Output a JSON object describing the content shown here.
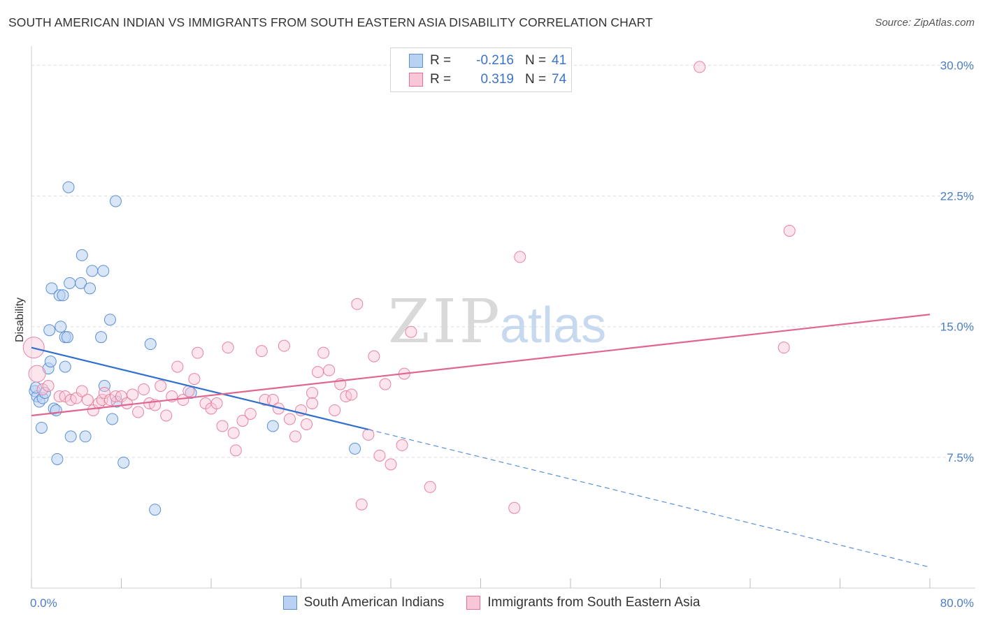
{
  "title": "SOUTH AMERICAN INDIAN VS IMMIGRANTS FROM SOUTH EASTERN ASIA DISABILITY CORRELATION CHART",
  "source": "Source: ZipAtlas.com",
  "watermark": {
    "zip": "ZIP",
    "atlas": "atlas"
  },
  "legend": {
    "rows": [
      {
        "r_label": "R =",
        "r_value": "-0.216",
        "n_label": "N =",
        "n_value": "41"
      },
      {
        "r_label": "R =",
        "r_value": "0.319",
        "n_label": "N =",
        "n_value": "74"
      }
    ]
  },
  "bottom_legend": {
    "series1": "South American Indians",
    "series2": "Immigrants from South Eastern Asia"
  },
  "colors": {
    "blue": "#5b8fd6",
    "blue_fill": "#b9d2f3",
    "pink": "#e86f9a",
    "pink_fill": "#f8c6d6",
    "axis_text": "#4a7ec4"
  },
  "chart_data": {
    "type": "scatter",
    "title": "SOUTH AMERICAN INDIAN VS IMMIGRANTS FROM SOUTH EASTERN ASIA DISABILITY CORRELATION CHART",
    "xlabel": "",
    "ylabel": "Disability",
    "xlim": [
      0,
      80
    ],
    "ylim": [
      0,
      31.5
    ],
    "x_tick_labels": [
      "0.0%",
      "80.0%"
    ],
    "y_ticks": [
      7.5,
      15.0,
      22.5,
      30.0
    ],
    "y_tick_labels": [
      "7.5%",
      "15.0%",
      "22.5%",
      "30.0%"
    ],
    "series": [
      {
        "name": "South American Indians",
        "color": "#5b8fd6",
        "trend": {
          "x0": 0,
          "y0": 13.8,
          "x1": 30,
          "y1": 9.1,
          "dash_to_x": 80,
          "dash_to_y": 1.2
        },
        "points": [
          [
            0.3,
            11.3
          ],
          [
            0.5,
            11.0
          ],
          [
            0.7,
            10.7
          ],
          [
            1.0,
            10.9
          ],
          [
            1.2,
            11.2
          ],
          [
            0.9,
            9.2
          ],
          [
            1.5,
            12.6
          ],
          [
            1.6,
            14.8
          ],
          [
            1.7,
            13.0
          ],
          [
            1.8,
            17.2
          ],
          [
            2.0,
            10.3
          ],
          [
            2.2,
            10.2
          ],
          [
            2.3,
            7.4
          ],
          [
            2.5,
            16.8
          ],
          [
            2.6,
            15.0
          ],
          [
            2.8,
            16.8
          ],
          [
            3.0,
            14.4
          ],
          [
            3.0,
            12.7
          ],
          [
            3.2,
            14.4
          ],
          [
            3.3,
            23.0
          ],
          [
            3.4,
            17.5
          ],
          [
            3.5,
            8.7
          ],
          [
            4.4,
            17.5
          ],
          [
            4.5,
            19.1
          ],
          [
            4.8,
            8.7
          ],
          [
            5.2,
            17.2
          ],
          [
            5.4,
            18.2
          ],
          [
            6.2,
            14.4
          ],
          [
            6.4,
            18.2
          ],
          [
            6.5,
            11.6
          ],
          [
            7.0,
            15.4
          ],
          [
            7.2,
            9.7
          ],
          [
            7.5,
            22.2
          ],
          [
            7.6,
            10.7
          ],
          [
            8.2,
            7.2
          ],
          [
            10.6,
            14.0
          ],
          [
            11.0,
            4.5
          ],
          [
            14.2,
            11.2
          ],
          [
            21.5,
            9.3
          ],
          [
            28.8,
            8.0
          ],
          [
            0.4,
            11.5
          ]
        ]
      },
      {
        "name": "Immigrants from South Eastern Asia",
        "color": "#e86f9a",
        "trend": {
          "x0": 0,
          "y0": 9.9,
          "x1": 80,
          "y1": 15.7
        },
        "points": [
          [
            0.2,
            13.8
          ],
          [
            0.5,
            12.3
          ],
          [
            1.0,
            11.4
          ],
          [
            1.5,
            11.6
          ],
          [
            2.5,
            11.0
          ],
          [
            3.0,
            11.0
          ],
          [
            3.5,
            10.8
          ],
          [
            4.0,
            10.9
          ],
          [
            4.5,
            11.3
          ],
          [
            5.0,
            10.8
          ],
          [
            5.5,
            10.2
          ],
          [
            6.0,
            10.6
          ],
          [
            6.3,
            10.8
          ],
          [
            6.5,
            11.2
          ],
          [
            7.0,
            10.8
          ],
          [
            7.5,
            11.0
          ],
          [
            8.0,
            11.0
          ],
          [
            8.5,
            10.6
          ],
          [
            9.0,
            11.1
          ],
          [
            9.5,
            10.1
          ],
          [
            10.0,
            11.4
          ],
          [
            10.5,
            10.6
          ],
          [
            11.0,
            10.5
          ],
          [
            11.5,
            11.6
          ],
          [
            12.0,
            9.9
          ],
          [
            12.5,
            11.0
          ],
          [
            13.0,
            12.7
          ],
          [
            13.5,
            10.8
          ],
          [
            14.0,
            11.3
          ],
          [
            14.5,
            12.0
          ],
          [
            14.8,
            13.5
          ],
          [
            15.5,
            10.6
          ],
          [
            16.0,
            10.3
          ],
          [
            16.5,
            10.6
          ],
          [
            17.0,
            9.3
          ],
          [
            17.5,
            13.8
          ],
          [
            18.0,
            8.9
          ],
          [
            18.2,
            7.9
          ],
          [
            18.8,
            9.6
          ],
          [
            19.5,
            10.0
          ],
          [
            20.5,
            13.6
          ],
          [
            20.8,
            10.8
          ],
          [
            21.5,
            10.8
          ],
          [
            22.0,
            10.3
          ],
          [
            22.5,
            13.9
          ],
          [
            23.0,
            9.7
          ],
          [
            23.5,
            8.7
          ],
          [
            24.0,
            10.2
          ],
          [
            24.5,
            9.4
          ],
          [
            25.0,
            11.2
          ],
          [
            25.0,
            10.6
          ],
          [
            25.5,
            12.4
          ],
          [
            26.0,
            13.5
          ],
          [
            26.5,
            12.5
          ],
          [
            27.0,
            10.2
          ],
          [
            27.5,
            11.7
          ],
          [
            28.0,
            11.0
          ],
          [
            28.5,
            11.1
          ],
          [
            29.0,
            16.3
          ],
          [
            29.4,
            4.8
          ],
          [
            30.0,
            8.8
          ],
          [
            30.5,
            13.3
          ],
          [
            31.0,
            7.6
          ],
          [
            31.5,
            11.7
          ],
          [
            32.0,
            7.1
          ],
          [
            33.0,
            8.2
          ],
          [
            33.2,
            12.3
          ],
          [
            33.8,
            14.7
          ],
          [
            35.5,
            5.8
          ],
          [
            43.0,
            4.6
          ],
          [
            43.5,
            19.0
          ],
          [
            59.5,
            29.9
          ],
          [
            67.0,
            13.8
          ],
          [
            67.5,
            20.5
          ]
        ]
      }
    ]
  }
}
